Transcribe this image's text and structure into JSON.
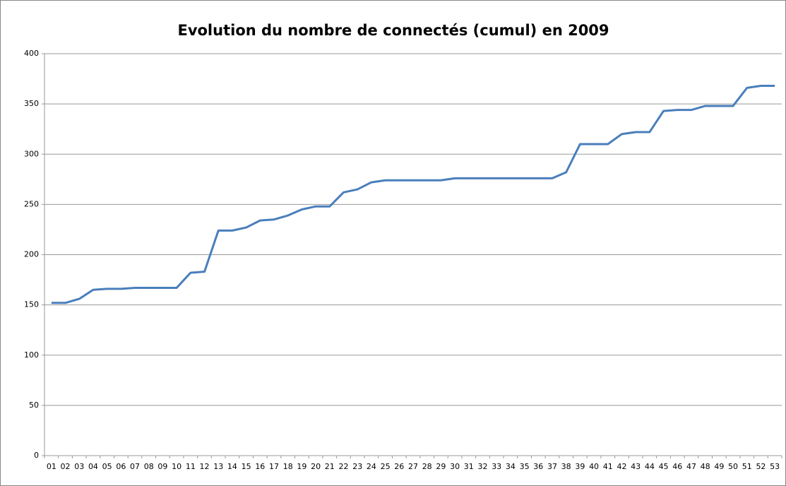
{
  "chart_data": {
    "type": "line",
    "title": "Evolution du nombre de connectés (cumul) en 2009",
    "categories": [
      "01",
      "02",
      "03",
      "04",
      "05",
      "06",
      "07",
      "08",
      "09",
      "10",
      "11",
      "12",
      "13",
      "14",
      "15",
      "16",
      "17",
      "18",
      "19",
      "20",
      "21",
      "22",
      "23",
      "24",
      "25",
      "26",
      "27",
      "28",
      "29",
      "30",
      "31",
      "32",
      "33",
      "34",
      "35",
      "36",
      "37",
      "38",
      "39",
      "40",
      "41",
      "42",
      "43",
      "44",
      "45",
      "46",
      "47",
      "48",
      "49",
      "50",
      "51",
      "52",
      "53"
    ],
    "series": [
      {
        "name": "connectés",
        "color": "#4a7ebb",
        "values": [
          152,
          152,
          156,
          165,
          166,
          166,
          167,
          167,
          167,
          167,
          182,
          183,
          224,
          224,
          227,
          234,
          235,
          239,
          245,
          248,
          248,
          262,
          265,
          272,
          274,
          274,
          274,
          274,
          274,
          276,
          276,
          276,
          276,
          276,
          276,
          276,
          276,
          282,
          310,
          310,
          310,
          320,
          322,
          322,
          343,
          344,
          344,
          348,
          348,
          348,
          366,
          368,
          368
        ]
      }
    ],
    "ylim": [
      0,
      400
    ],
    "yticks": [
      0,
      50,
      100,
      150,
      200,
      250,
      300,
      350,
      400
    ],
    "grid": true
  }
}
